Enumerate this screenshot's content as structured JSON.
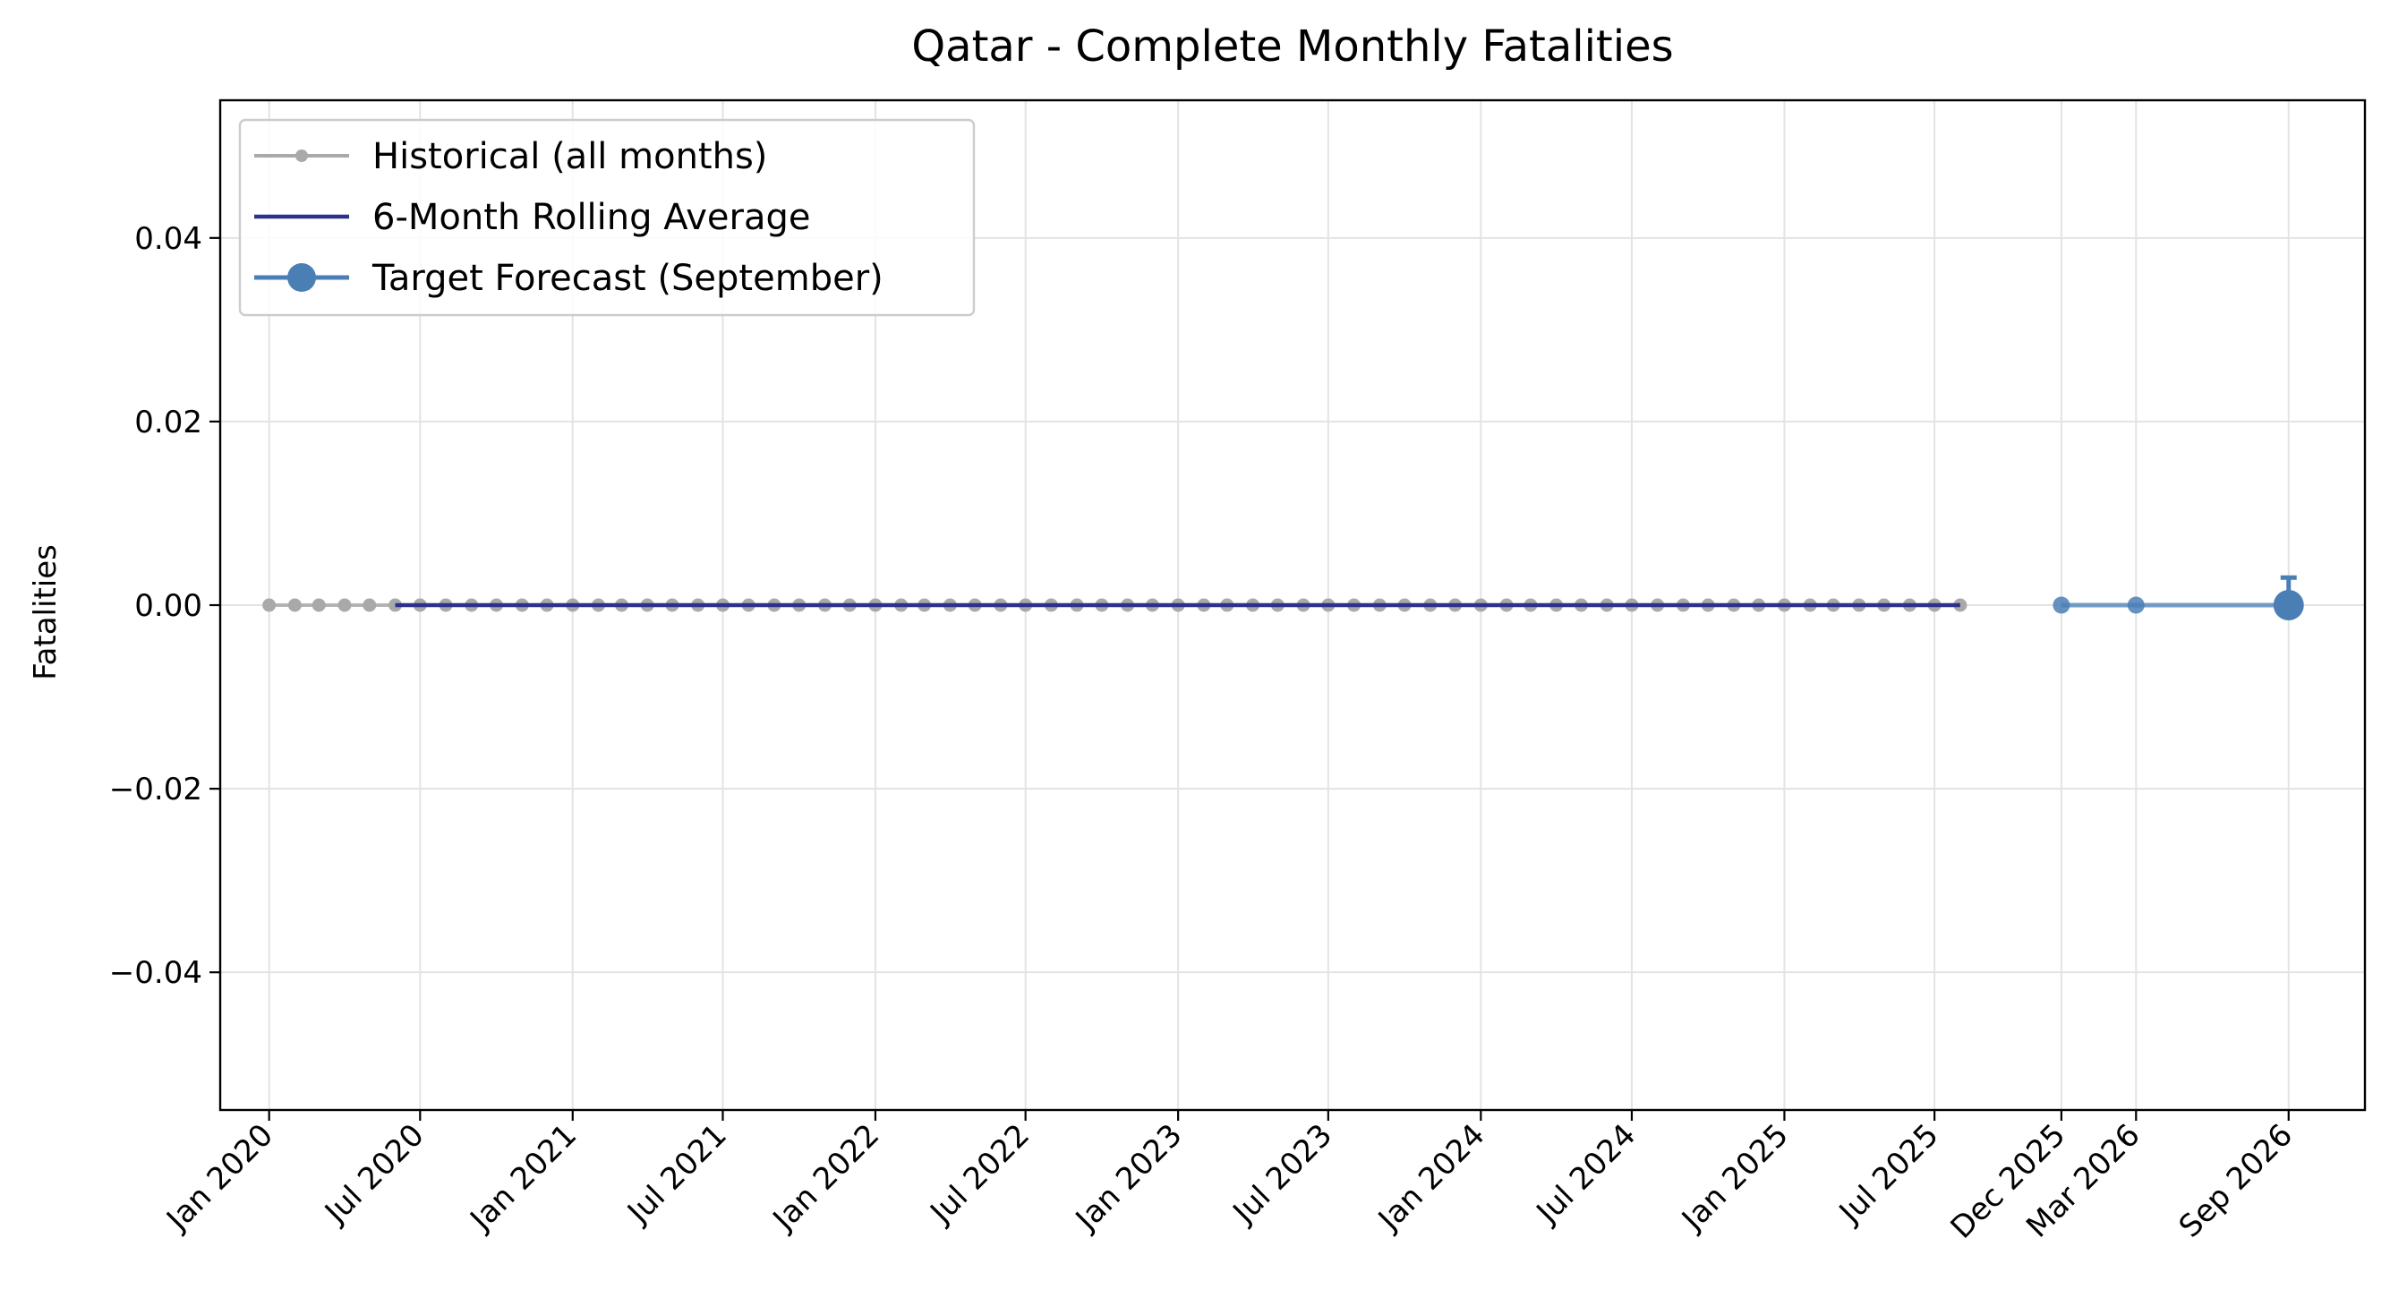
{
  "chart_data": {
    "type": "line",
    "title": "Qatar - Complete Monthly Fatalities",
    "xlabel": "",
    "ylabel": "Fatalities",
    "ylim": [
      -0.055,
      0.055
    ],
    "yticks": [
      -0.04,
      -0.02,
      0.0,
      0.02,
      0.04
    ],
    "ytick_labels": [
      "−0.04",
      "−0.02",
      "0.00",
      "0.02",
      "0.04"
    ],
    "xlim": [
      "2019-11-03",
      "2026-12-02"
    ],
    "xticks": [
      {
        "date": "2020-01-01",
        "label": "Jan 2020"
      },
      {
        "date": "2020-07-01",
        "label": "Jul 2020"
      },
      {
        "date": "2021-01-01",
        "label": "Jan 2021"
      },
      {
        "date": "2021-07-01",
        "label": "Jul 2021"
      },
      {
        "date": "2022-01-01",
        "label": "Jan 2022"
      },
      {
        "date": "2022-07-01",
        "label": "Jul 2022"
      },
      {
        "date": "2023-01-01",
        "label": "Jan 2023"
      },
      {
        "date": "2023-07-01",
        "label": "Jul 2023"
      },
      {
        "date": "2024-01-01",
        "label": "Jan 2024"
      },
      {
        "date": "2024-07-01",
        "label": "Jul 2024"
      },
      {
        "date": "2025-01-01",
        "label": "Jan 2025"
      },
      {
        "date": "2025-07-01",
        "label": "Jul 2025"
      },
      {
        "date": "2025-12-01",
        "label": "Dec 2025"
      },
      {
        "date": "2026-03-01",
        "label": "Mar 2026"
      },
      {
        "date": "2026-09-01",
        "label": "Sep 2026"
      }
    ],
    "grid": true,
    "legend_position": "upper-left",
    "series": [
      {
        "name": "Historical (all months)",
        "color": "#a9a9a9",
        "x_start": "2020-01",
        "x_end": "2025-08",
        "frequency": "monthly",
        "value": 0
      },
      {
        "name": "6-Month Rolling Average",
        "color": "#2e318a",
        "x_start": "2020-06",
        "x_end": "2025-08",
        "frequency": "monthly",
        "value": 0
      },
      {
        "name": "Target Forecast (September)",
        "color": "#4a7fb5",
        "points": [
          {
            "x": "2025-12-01",
            "y": 0
          },
          {
            "x": "2026-03-01",
            "y": 0
          },
          {
            "x": "2026-09-01",
            "y": 0
          }
        ],
        "error_bar": {
          "x": "2026-09-01",
          "low": 0,
          "high": 0.003
        }
      }
    ]
  }
}
